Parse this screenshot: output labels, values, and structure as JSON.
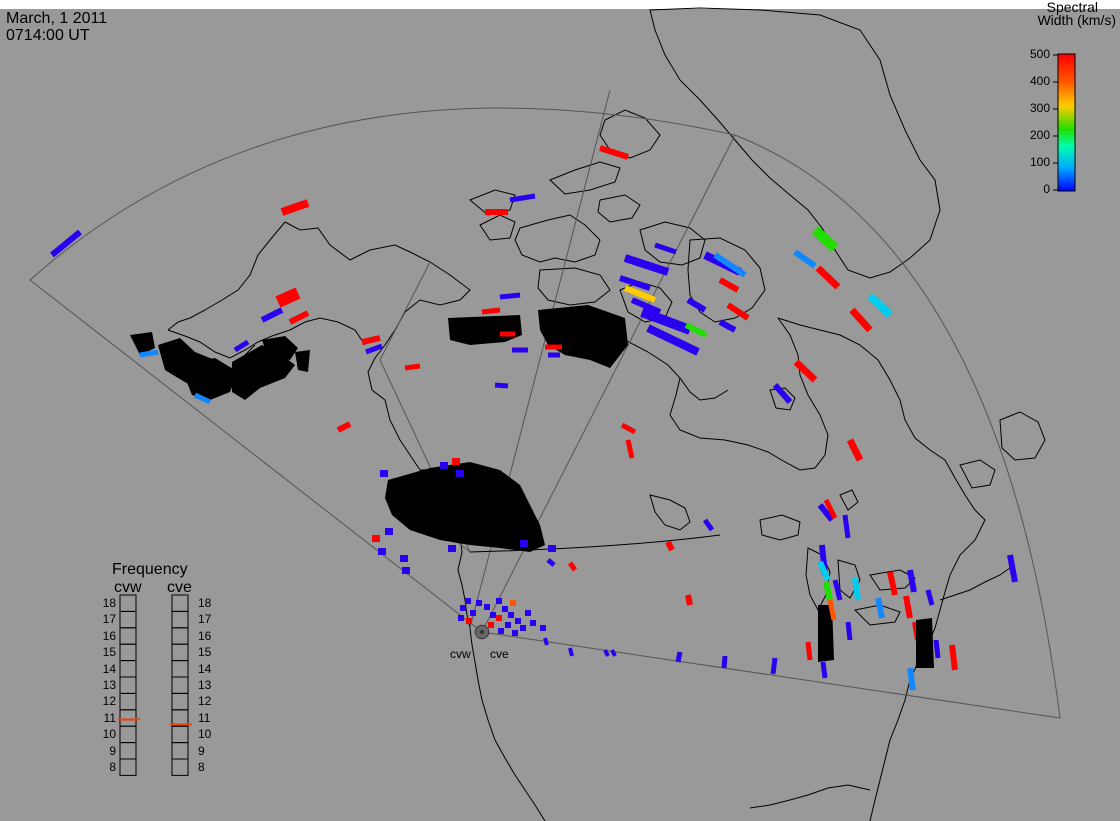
{
  "header": {
    "date": "March, 1 2011",
    "time": "0714:00 UT"
  },
  "colorbar": {
    "title_line1": "Spectral",
    "title_line2": "Width (km/s)",
    "ticks": [
      "500",
      "400",
      "300",
      "200",
      "100",
      "0"
    ],
    "stops": [
      "#0000ff",
      "#00aaff",
      "#00ffaa",
      "#22dd00",
      "#ffcc00",
      "#ff5500",
      "#ff0000"
    ]
  },
  "frequency_panel": {
    "title": "Frequency",
    "radar_left": "cvw",
    "radar_right": "cve",
    "ticks": [
      "18",
      "17",
      "16",
      "15",
      "14",
      "13",
      "12",
      "11",
      "10",
      "9",
      "8"
    ],
    "cvw_freq_mhz": 10.9,
    "cve_freq_mhz": 10.6,
    "marker_color": "#ee4400"
  },
  "radar_labels": {
    "left": "cvw",
    "right": "cve"
  },
  "colors": {
    "background": "#999999",
    "coast": "#000000",
    "fov": "#555555",
    "low": "#2a00ee",
    "high": "#ff0000"
  }
}
